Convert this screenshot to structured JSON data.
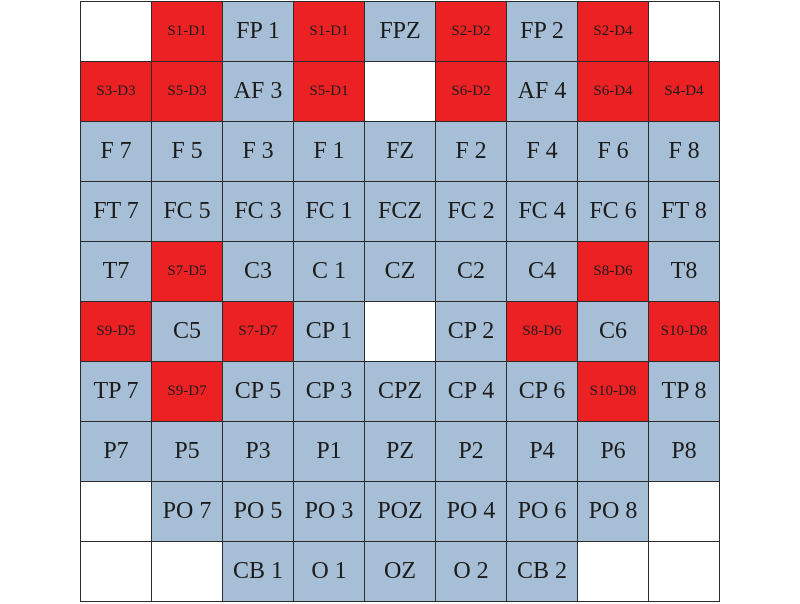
{
  "colors": {
    "electrode": "#a7bfd6",
    "channel": "#ec2124",
    "empty": "#ffffff"
  },
  "grid": {
    "columns": 9,
    "rows": [
      [
        {
          "label": "",
          "kind": "empty"
        },
        {
          "label": "S1-D1",
          "kind": "channel"
        },
        {
          "label": "FP 1",
          "kind": "electrode"
        },
        {
          "label": "S1-D1",
          "kind": "channel"
        },
        {
          "label": "FPZ",
          "kind": "electrode"
        },
        {
          "label": "S2-D2",
          "kind": "channel"
        },
        {
          "label": "FP 2",
          "kind": "electrode"
        },
        {
          "label": "S2-D4",
          "kind": "channel"
        },
        {
          "label": "",
          "kind": "empty"
        }
      ],
      [
        {
          "label": "S3-D3",
          "kind": "channel"
        },
        {
          "label": "S5-D3",
          "kind": "channel"
        },
        {
          "label": "AF 3",
          "kind": "electrode"
        },
        {
          "label": "S5-D1",
          "kind": "channel"
        },
        {
          "label": "",
          "kind": "empty"
        },
        {
          "label": "S6-D2",
          "kind": "channel"
        },
        {
          "label": "AF 4",
          "kind": "electrode"
        },
        {
          "label": "S6-D4",
          "kind": "channel"
        },
        {
          "label": "S4-D4",
          "kind": "channel"
        }
      ],
      [
        {
          "label": "F 7",
          "kind": "electrode"
        },
        {
          "label": "F 5",
          "kind": "electrode"
        },
        {
          "label": "F 3",
          "kind": "electrode"
        },
        {
          "label": "F 1",
          "kind": "electrode"
        },
        {
          "label": "FZ",
          "kind": "electrode"
        },
        {
          "label": "F 2",
          "kind": "electrode"
        },
        {
          "label": "F 4",
          "kind": "electrode"
        },
        {
          "label": "F 6",
          "kind": "electrode"
        },
        {
          "label": "F 8",
          "kind": "electrode"
        }
      ],
      [
        {
          "label": "FT 7",
          "kind": "electrode"
        },
        {
          "label": "FC 5",
          "kind": "electrode"
        },
        {
          "label": "FC 3",
          "kind": "electrode"
        },
        {
          "label": "FC 1",
          "kind": "electrode"
        },
        {
          "label": "FCZ",
          "kind": "electrode"
        },
        {
          "label": "FC 2",
          "kind": "electrode"
        },
        {
          "label": "FC 4",
          "kind": "electrode"
        },
        {
          "label": "FC 6",
          "kind": "electrode"
        },
        {
          "label": "FT 8",
          "kind": "electrode"
        }
      ],
      [
        {
          "label": "T7",
          "kind": "electrode"
        },
        {
          "label": "S7-D5",
          "kind": "channel"
        },
        {
          "label": "C3",
          "kind": "electrode"
        },
        {
          "label": "C 1",
          "kind": "electrode"
        },
        {
          "label": "CZ",
          "kind": "electrode"
        },
        {
          "label": "C2",
          "kind": "electrode"
        },
        {
          "label": "C4",
          "kind": "electrode"
        },
        {
          "label": "S8-D6",
          "kind": "channel"
        },
        {
          "label": "T8",
          "kind": "electrode"
        }
      ],
      [
        {
          "label": "S9-D5",
          "kind": "channel"
        },
        {
          "label": "C5",
          "kind": "electrode"
        },
        {
          "label": "S7-D7",
          "kind": "channel"
        },
        {
          "label": "CP 1",
          "kind": "electrode"
        },
        {
          "label": "",
          "kind": "empty"
        },
        {
          "label": "CP 2",
          "kind": "electrode"
        },
        {
          "label": "S8-D6",
          "kind": "channel"
        },
        {
          "label": "C6",
          "kind": "electrode"
        },
        {
          "label": "S10-D8",
          "kind": "channel"
        }
      ],
      [
        {
          "label": "TP 7",
          "kind": "electrode"
        },
        {
          "label": "S9-D7",
          "kind": "channel"
        },
        {
          "label": "CP 5",
          "kind": "electrode"
        },
        {
          "label": "CP 3",
          "kind": "electrode"
        },
        {
          "label": "CPZ",
          "kind": "electrode"
        },
        {
          "label": "CP 4",
          "kind": "electrode"
        },
        {
          "label": "CP 6",
          "kind": "electrode"
        },
        {
          "label": "S10-D8",
          "kind": "channel"
        },
        {
          "label": "TP 8",
          "kind": "electrode"
        }
      ],
      [
        {
          "label": "P7",
          "kind": "electrode"
        },
        {
          "label": "P5",
          "kind": "electrode"
        },
        {
          "label": "P3",
          "kind": "electrode"
        },
        {
          "label": "P1",
          "kind": "electrode"
        },
        {
          "label": "PZ",
          "kind": "electrode"
        },
        {
          "label": "P2",
          "kind": "electrode"
        },
        {
          "label": "P4",
          "kind": "electrode"
        },
        {
          "label": "P6",
          "kind": "electrode"
        },
        {
          "label": "P8",
          "kind": "electrode"
        }
      ],
      [
        {
          "label": "",
          "kind": "empty"
        },
        {
          "label": "PO 7",
          "kind": "electrode"
        },
        {
          "label": "PO 5",
          "kind": "electrode"
        },
        {
          "label": "PO 3",
          "kind": "electrode"
        },
        {
          "label": "POZ",
          "kind": "electrode"
        },
        {
          "label": "PO 4",
          "kind": "electrode"
        },
        {
          "label": "PO 6",
          "kind": "electrode"
        },
        {
          "label": "PO 8",
          "kind": "electrode"
        },
        {
          "label": "",
          "kind": "empty"
        }
      ],
      [
        {
          "label": "",
          "kind": "empty"
        },
        {
          "label": "",
          "kind": "empty"
        },
        {
          "label": "CB 1",
          "kind": "electrode"
        },
        {
          "label": "O 1",
          "kind": "electrode"
        },
        {
          "label": "OZ",
          "kind": "electrode"
        },
        {
          "label": "O 2",
          "kind": "electrode"
        },
        {
          "label": "CB 2",
          "kind": "electrode"
        },
        {
          "label": "",
          "kind": "empty"
        },
        {
          "label": "",
          "kind": "empty"
        }
      ]
    ]
  }
}
